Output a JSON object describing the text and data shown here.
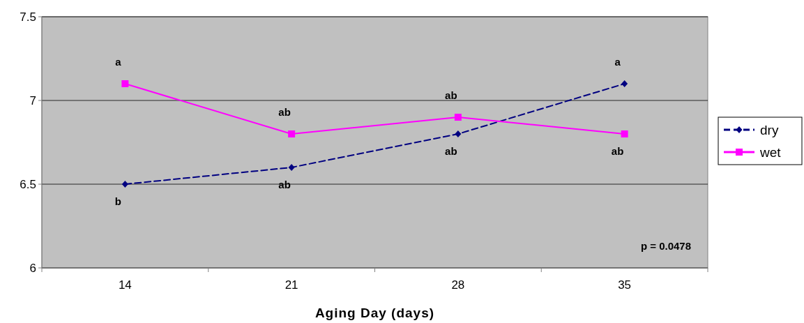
{
  "chart_data": {
    "type": "line",
    "categories": [
      "14",
      "21",
      "28",
      "35"
    ],
    "series": [
      {
        "name": "dry",
        "color": "#000080",
        "values": [
          6.5,
          6.6,
          6.8,
          7.1
        ],
        "marker": "diamond",
        "line_style": "dashed"
      },
      {
        "name": "wet",
        "color": "#ff00ff",
        "values": [
          7.1,
          6.8,
          6.9,
          6.8
        ],
        "marker": "square",
        "line_style": "solid"
      }
    ],
    "xlabel": "Aging Day (days)",
    "ylim": [
      6,
      7.5
    ],
    "yticks": [
      6,
      6.5,
      7,
      7.5
    ],
    "grid": "y",
    "legend": "right",
    "annotations": [
      {
        "text": "b",
        "x": "14",
        "y": 6.5
      },
      {
        "text": "a",
        "x": "14",
        "y": 7.1
      },
      {
        "text": "ab",
        "x": "21",
        "y": 6.8
      },
      {
        "text": "ab",
        "x": "21",
        "y": 6.6
      },
      {
        "text": "ab",
        "x": "28",
        "y": 6.9
      },
      {
        "text": "ab",
        "x": "28",
        "y": 6.8
      },
      {
        "text": "a",
        "x": "35",
        "y": 7.1
      },
      {
        "text": "ab",
        "x": "35",
        "y": 6.8
      },
      "p = 0.0478"
    ]
  }
}
